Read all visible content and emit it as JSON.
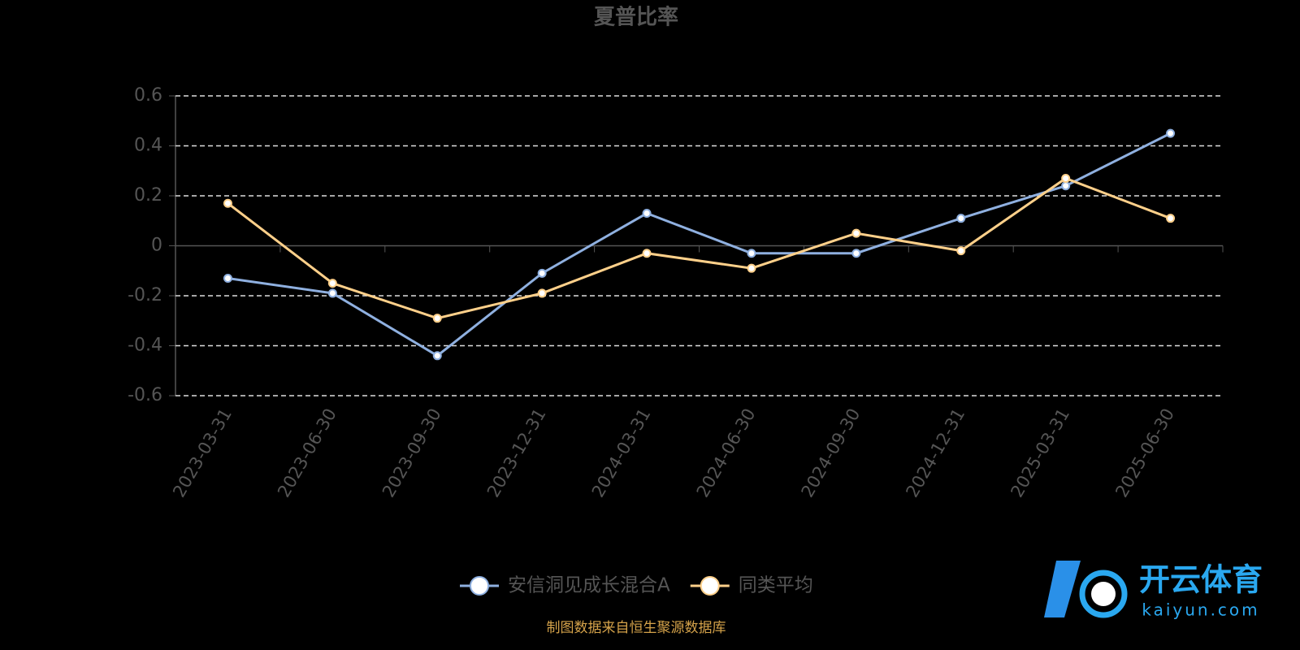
{
  "chart_data": {
    "type": "line",
    "title": "夏普比率",
    "categories": [
      "2023-03-31",
      "2023-06-30",
      "2023-09-30",
      "2023-12-31",
      "2024-03-31",
      "2024-06-30",
      "2024-09-30",
      "2024-12-31",
      "2025-03-31",
      "2025-06-30"
    ],
    "series": [
      {
        "name": "安信洞见成长混合A",
        "color": "#8fb0e0",
        "values": [
          -0.13,
          -0.19,
          -0.44,
          -0.11,
          0.13,
          -0.03,
          -0.03,
          0.11,
          0.24,
          0.45
        ]
      },
      {
        "name": "同类平均",
        "color": "#ffd08a",
        "values": [
          0.17,
          -0.15,
          -0.29,
          -0.19,
          -0.03,
          -0.09,
          0.05,
          -0.02,
          0.27,
          0.11
        ]
      }
    ],
    "ylim": [
      -0.6,
      0.6
    ],
    "yticks": [
      -0.6,
      -0.4,
      -0.2,
      0,
      0.2,
      0.4,
      0.6
    ],
    "grid": true,
    "legend": "bottom",
    "source": "制图数据来自恒生聚源数据库",
    "watermark": {
      "text": "开云体育",
      "url": "kaiyun.com"
    }
  }
}
